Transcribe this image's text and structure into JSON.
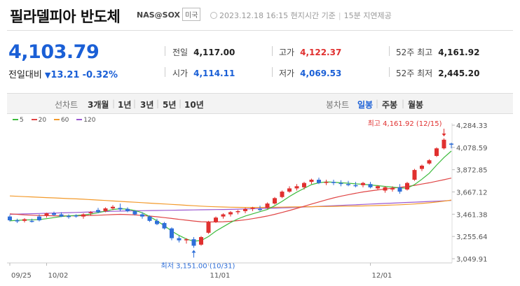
{
  "header": {
    "title": "필라델피아 반도체",
    "code": "NAS@SOX",
    "market_badge": "미국",
    "timestamp": "2023.12.18 16:15 현지시간 기준",
    "delay_note": "15분 지연제공"
  },
  "quote": {
    "price": "4,103.79",
    "change_label": "전일대비",
    "change_arrow": "▼",
    "change": "13.21",
    "change_pct": "-0.32%"
  },
  "stats": {
    "prev_close_label": "전일",
    "prev_close": "4,117.00",
    "open_label": "시가",
    "open": "4,114.11",
    "high_label": "고가",
    "high": "4,122.37",
    "low_label": "저가",
    "low": "4,069.53",
    "w52_high_label": "52주 최고",
    "w52_high": "4,161.92",
    "w52_low_label": "52주 최저",
    "w52_low": "2,445.20"
  },
  "toolbar": {
    "line_label": "선차트",
    "ranges": [
      "3개월",
      "1년",
      "3년",
      "5년",
      "10년"
    ],
    "candle_label": "봉차트",
    "periods": [
      "일봉",
      "주봉",
      "월봉"
    ],
    "active_period": "일봉"
  },
  "colors": {
    "up": "#e0302f",
    "down": "#2f6fd9",
    "ma5": "#3dbb3d",
    "ma20": "#e04545",
    "ma60": "#f39a2b",
    "ma120": "#9b59d0"
  },
  "legend": [
    {
      "label": "5",
      "color": "#3dbb3d"
    },
    {
      "label": "20",
      "color": "#e04545"
    },
    {
      "label": "60",
      "color": "#f39a2b"
    },
    {
      "label": "120",
      "color": "#9b59d0"
    }
  ],
  "chart_data": {
    "type": "candlestick",
    "ylim": [
      3000,
      4330
    ],
    "y_ticks": [
      "4,284.33",
      "4,078.59",
      "3,872.85",
      "3,667.12",
      "3,461.38",
      "3,255.64",
      "3,049.91"
    ],
    "y_tick_values": [
      4284.33,
      4078.59,
      3872.85,
      3667.12,
      3461.38,
      3255.64,
      3049.91
    ],
    "x_labels": [
      {
        "label": "09/25",
        "index": 0
      },
      {
        "label": "10/02",
        "index": 5
      },
      {
        "label": "11/01",
        "index": 27
      },
      {
        "label": "12/01",
        "index": 49
      }
    ],
    "annotations": {
      "high": {
        "label": "최고",
        "value": "4,161.92",
        "date": "12/15",
        "index": 59,
        "price": 4161.92
      },
      "low": {
        "label": "최저",
        "value": "3,151.00",
        "date": "10/31",
        "index": 25,
        "price": 3151.0
      }
    },
    "candles": [
      [
        3440,
        3455,
        3395,
        3405
      ],
      [
        3405,
        3420,
        3380,
        3395
      ],
      [
        3400,
        3425,
        3385,
        3415
      ],
      [
        3400,
        3420,
        3385,
        3395
      ],
      [
        3440,
        3460,
        3395,
        3405
      ],
      [
        3450,
        3475,
        3430,
        3470
      ],
      [
        3470,
        3485,
        3445,
        3455
      ],
      [
        3460,
        3480,
        3435,
        3440
      ],
      [
        3445,
        3460,
        3420,
        3435
      ],
      [
        3450,
        3460,
        3430,
        3445
      ],
      [
        3440,
        3470,
        3420,
        3460
      ],
      [
        3470,
        3490,
        3450,
        3480
      ],
      [
        3500,
        3520,
        3470,
        3480
      ],
      [
        3490,
        3525,
        3480,
        3515
      ],
      [
        3515,
        3545,
        3500,
        3530
      ],
      [
        3520,
        3560,
        3490,
        3505
      ],
      [
        3510,
        3525,
        3480,
        3490
      ],
      [
        3490,
        3500,
        3450,
        3460
      ],
      [
        3460,
        3480,
        3420,
        3440
      ],
      [
        3440,
        3450,
        3390,
        3400
      ],
      [
        3400,
        3420,
        3360,
        3370
      ],
      [
        3380,
        3390,
        3320,
        3330
      ],
      [
        3330,
        3340,
        3220,
        3240
      ],
      [
        3240,
        3260,
        3200,
        3220
      ],
      [
        3220,
        3240,
        3190,
        3230
      ],
      [
        3230,
        3250,
        3151,
        3170
      ],
      [
        3180,
        3260,
        3170,
        3250
      ],
      [
        3290,
        3400,
        3280,
        3390
      ],
      [
        3390,
        3440,
        3380,
        3430
      ],
      [
        3440,
        3470,
        3420,
        3460
      ],
      [
        3460,
        3490,
        3440,
        3480
      ],
      [
        3480,
        3500,
        3460,
        3490
      ],
      [
        3490,
        3520,
        3470,
        3510
      ],
      [
        3510,
        3530,
        3490,
        3520
      ],
      [
        3510,
        3540,
        3490,
        3500
      ],
      [
        3520,
        3570,
        3510,
        3560
      ],
      [
        3560,
        3620,
        3550,
        3610
      ],
      [
        3620,
        3680,
        3610,
        3670
      ],
      [
        3670,
        3720,
        3660,
        3700
      ],
      [
        3700,
        3740,
        3680,
        3720
      ],
      [
        3710,
        3760,
        3690,
        3750
      ],
      [
        3760,
        3790,
        3740,
        3780
      ],
      [
        3780,
        3800,
        3740,
        3750
      ],
      [
        3750,
        3780,
        3730,
        3760
      ],
      [
        3760,
        3780,
        3730,
        3750
      ],
      [
        3750,
        3775,
        3720,
        3745
      ],
      [
        3740,
        3770,
        3720,
        3730
      ],
      [
        3730,
        3760,
        3710,
        3720
      ],
      [
        3730,
        3760,
        3710,
        3750
      ],
      [
        3740,
        3760,
        3700,
        3710
      ],
      [
        3700,
        3730,
        3690,
        3720
      ],
      [
        3680,
        3720,
        3660,
        3710
      ],
      [
        3690,
        3720,
        3670,
        3700
      ],
      [
        3710,
        3740,
        3650,
        3670
      ],
      [
        3690,
        3760,
        3680,
        3750
      ],
      [
        3780,
        3880,
        3770,
        3870
      ],
      [
        3880,
        3920,
        3860,
        3910
      ],
      [
        3930,
        3970,
        3920,
        3960
      ],
      [
        4000,
        4080,
        3990,
        4070
      ],
      [
        4070,
        4162,
        4060,
        4150
      ],
      [
        4114,
        4122,
        4070,
        4104
      ]
    ],
    "ma5": [
      3400,
      3405,
      3408,
      3410,
      3412,
      3420,
      3430,
      3440,
      3446,
      3450,
      3455,
      3462,
      3475,
      3490,
      3505,
      3512,
      3508,
      3495,
      3475,
      3440,
      3400,
      3355,
      3305,
      3265,
      3232,
      3212,
      3218,
      3255,
      3305,
      3345,
      3385,
      3418,
      3445,
      3465,
      3485,
      3505,
      3540,
      3580,
      3625,
      3665,
      3700,
      3735,
      3752,
      3760,
      3757,
      3752,
      3748,
      3742,
      3738,
      3732,
      3725,
      3718,
      3712,
      3705,
      3702,
      3735,
      3785,
      3840,
      3915,
      3985,
      4045
    ],
    "ma20": [
      3465,
      3460,
      3455,
      3452,
      3450,
      3448,
      3447,
      3446,
      3446,
      3447,
      3448,
      3450,
      3452,
      3455,
      3458,
      3460,
      3458,
      3455,
      3450,
      3444,
      3438,
      3430,
      3422,
      3414,
      3406,
      3398,
      3392,
      3390,
      3390,
      3392,
      3396,
      3402,
      3410,
      3420,
      3432,
      3445,
      3460,
      3478,
      3496,
      3515,
      3535,
      3555,
      3575,
      3594,
      3612,
      3628,
      3642,
      3655,
      3667,
      3677,
      3686,
      3694,
      3702,
      3710,
      3718,
      3728,
      3740,
      3752,
      3766,
      3780,
      3795
    ],
    "ma60": [
      3630,
      3627,
      3624,
      3621,
      3618,
      3615,
      3612,
      3609,
      3606,
      3603,
      3600,
      3596,
      3592,
      3588,
      3584,
      3580,
      3576,
      3572,
      3568,
      3564,
      3560,
      3556,
      3552,
      3548,
      3544,
      3540,
      3536,
      3533,
      3530,
      3528,
      3526,
      3525,
      3524,
      3524,
      3524,
      3525,
      3526,
      3527,
      3528,
      3529,
      3530,
      3531,
      3532,
      3533,
      3534,
      3535,
      3536,
      3537,
      3538,
      3540,
      3542,
      3544,
      3546,
      3549,
      3552,
      3556,
      3561,
      3567,
      3574,
      3582,
      3592
    ],
    "ma120": [
      3460,
      3462,
      3464,
      3466,
      3468,
      3470,
      3472,
      3474,
      3476,
      3478,
      3480,
      3482,
      3484,
      3486,
      3488,
      3490,
      3492,
      3493,
      3494,
      3495,
      3496,
      3497,
      3498,
      3499,
      3500,
      3501,
      3502,
      3503,
      3504,
      3505,
      3506,
      3508,
      3510,
      3512,
      3514,
      3516,
      3518,
      3520,
      3522,
      3525,
      3528,
      3531,
      3534,
      3537,
      3540,
      3543,
      3546,
      3549,
      3552,
      3555,
      3558,
      3561,
      3564,
      3567,
      3570,
      3573,
      3576,
      3579,
      3582,
      3585,
      3588
    ]
  }
}
